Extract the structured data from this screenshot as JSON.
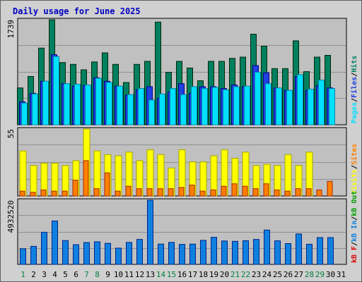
{
  "chart_data": {
    "type": "bar",
    "title": "Daily usage for June 2025",
    "categories": [
      "1",
      "2",
      "3",
      "4",
      "5",
      "6",
      "7",
      "8",
      "9",
      "10",
      "11",
      "12",
      "13",
      "14",
      "15",
      "16",
      "17",
      "18",
      "19",
      "20",
      "21",
      "22",
      "23",
      "24",
      "25",
      "26",
      "27",
      "28",
      "29",
      "30",
      "31"
    ],
    "weekend_days": [
      "1",
      "7",
      "8",
      "14",
      "15",
      "21",
      "22",
      "28",
      "29"
    ],
    "panels": [
      {
        "id": "hits",
        "scale_label": "1739",
        "ymax": 1739,
        "legend": [
          "Pages",
          "Files",
          "Hits"
        ],
        "series": [
          {
            "name": "Hits",
            "color": "#008060",
            "values": [
              610,
              800,
              1270,
              1739,
              1030,
              1000,
              910,
              1040,
              1190,
              1000,
              700,
              1000,
              1050,
              1700,
              870,
              1050,
              940,
              730,
              1050,
              1050,
              1100,
              1120,
              1500,
              1300,
              930,
              930,
              1390,
              880,
              1120,
              1150,
              0
            ]
          },
          {
            "name": "Files",
            "color": "#2040e0",
            "values": [
              380,
              520,
              720,
              1160,
              680,
              640,
              650,
              780,
              720,
              640,
              490,
              580,
              630,
              440,
              540,
              680,
              520,
              630,
              630,
              600,
              660,
              630,
              980,
              860,
              610,
              570,
              800,
              570,
              650,
              610,
              0
            ]
          },
          {
            "name": "Pages",
            "color": "#00e0ff",
            "values": [
              360,
              510,
              720,
              1130,
              680,
              670,
              660,
              770,
              700,
              640,
              500,
              600,
              410,
              510,
              600,
              500,
              630,
              600,
              620,
              580,
              630,
              640,
              870,
              680,
              610,
              570,
              830,
              590,
              740,
              600,
              0
            ]
          }
        ]
      },
      {
        "id": "visits",
        "scale_label": "55",
        "ymax": 55,
        "legend": [
          "Visits",
          "Sites"
        ],
        "series": [
          {
            "name": "Visits",
            "color": "#ffff00",
            "values": [
              37,
              25,
              27,
              27,
              25,
              29,
              55,
              37,
              34,
              33,
              36,
              29,
              38,
              34,
              23,
              38,
              28,
              28,
              33,
              38,
              31,
              36,
              25,
              26,
              25,
              34,
              25,
              36,
              0,
              0,
              0
            ]
          },
          {
            "name": "Sites",
            "color": "#ff8000",
            "values": [
              4,
              3,
              5,
              4,
              4,
              13,
              29,
              6,
              19,
              4,
              8,
              6,
              6,
              6,
              6,
              7,
              9,
              4,
              5,
              8,
              10,
              8,
              6,
              10,
              5,
              4,
              6,
              6,
              5,
              12,
              0
            ]
          }
        ]
      },
      {
        "id": "kbytes",
        "scale_label": "4932520",
        "ymax": 4932520,
        "legend": [
          "kB F",
          "kB In",
          "kB Out"
        ],
        "series": [
          {
            "name": "kB In",
            "color": "#1080e0",
            "values": [
              1200000,
              1390000,
              2470000,
              3340000,
              1830000,
              1520000,
              1680000,
              1740000,
              1620000,
              1250000,
              1690000,
              1920000,
              4932520,
              1560000,
              1690000,
              1540000,
              1560000,
              1850000,
              2080000,
              1800000,
              1770000,
              1820000,
              1920000,
              2640000,
              1810000,
              1600000,
              2340000,
              1550000,
              2060000,
              2060000,
              0
            ]
          }
        ]
      }
    ]
  }
}
